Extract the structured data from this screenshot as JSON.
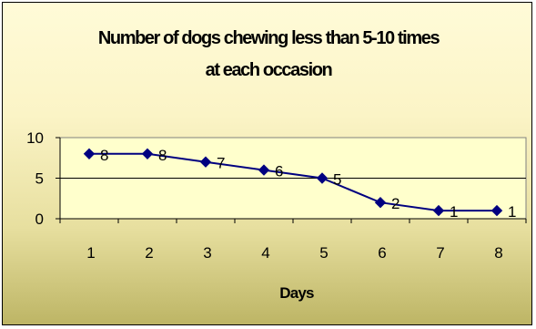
{
  "chart_data": {
    "type": "line",
    "title_lines": [
      "Number of dogs chewing less than 5-10 times",
      "at each occasion"
    ],
    "categories": [
      "1",
      "2",
      "3",
      "4",
      "5",
      "6",
      "7",
      "8"
    ],
    "series": [
      {
        "values": [
          8,
          8,
          7,
          6,
          5,
          2,
          1,
          1
        ]
      }
    ],
    "data_labels": [
      "8",
      "8",
      "7",
      "6",
      "5",
      "2",
      "1",
      "1"
    ],
    "xlabel": "Days",
    "ylabel": "",
    "ylim": [
      0,
      10
    ],
    "y_ticks": [
      "0",
      "5",
      "10"
    ],
    "grid": true,
    "legend": "none",
    "colors": {
      "line": "#000080",
      "marker": "#000080",
      "plot_area": "#ffffcc",
      "chart_area_top": "#fffbd8",
      "chart_area_bottom": "#bdb565"
    }
  }
}
